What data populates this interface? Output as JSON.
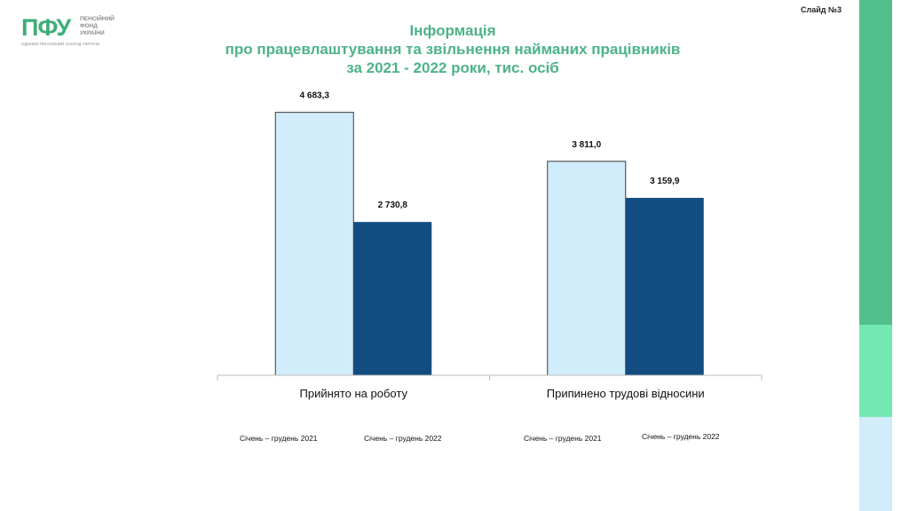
{
  "slide_label": "Слайд №3",
  "logo": {
    "mark": "ПФУ",
    "words": [
      "ПЕНСІЙНИЙ",
      "ФОНД",
      "УКРАЇНИ"
    ],
    "subtitle": "ЄДИНИЙ ПЕНСІЙНИЙ ЗАКЛАД УКРАЇНИ"
  },
  "colors": {
    "series_2021": "#d1ecfa",
    "series_2022": "#134c80",
    "title": "#4db388"
  },
  "chart_data": {
    "type": "bar",
    "title": [
      "Інформація",
      "про працевлаштування та звільнення найманих працівників",
      "за 2021 - 2022  роки,  тис. осіб"
    ],
    "categories": [
      "Прийнято на роботу",
      "Припинено трудові відносини"
    ],
    "series": [
      {
        "name": "Січень – грудень 2021",
        "values": [
          4683.3,
          3811.0
        ],
        "labels": [
          "4 683,3",
          "3 811,0"
        ]
      },
      {
        "name": "Січень – грудень 2022",
        "values": [
          2730.8,
          3159.9
        ],
        "labels": [
          "2 730,8",
          "3 159,9"
        ]
      }
    ],
    "legend_labels": [
      [
        "Січень – грудень 2021",
        "Січень – грудень 2022"
      ],
      [
        "Січень – грудень 2021",
        "Січень – грудень 2022"
      ]
    ],
    "ylim": [
      0,
      5000
    ],
    "grid": false,
    "legend_position": "bottom"
  }
}
